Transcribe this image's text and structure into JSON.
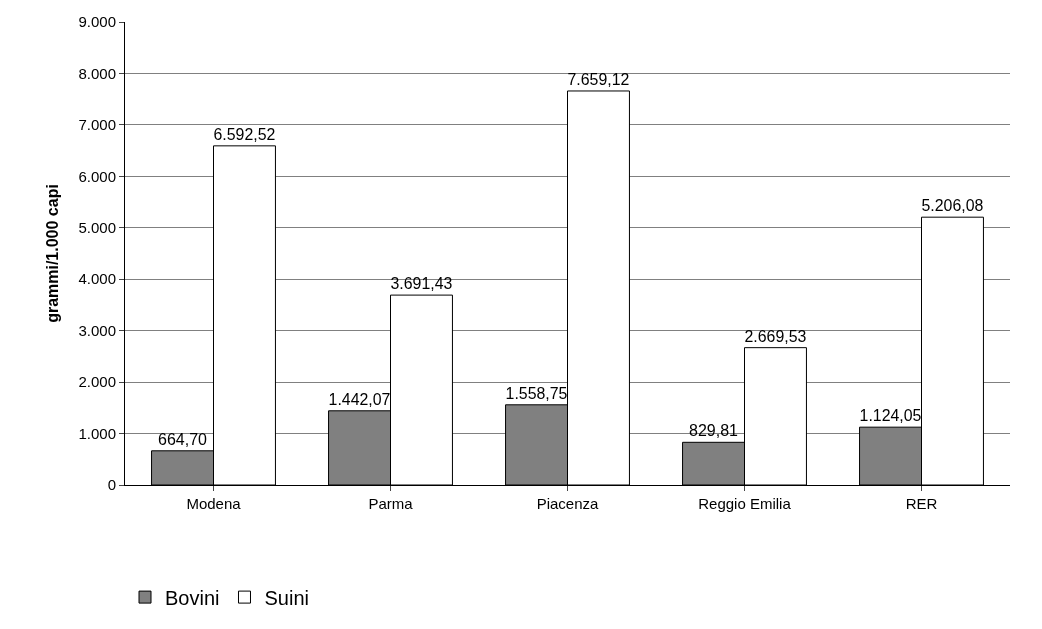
{
  "chart_data": {
    "type": "bar",
    "ylabel": "grammi/1.000 capi",
    "categories": [
      "Modena",
      "Parma",
      "Piacenza",
      "Reggio Emilia",
      "RER"
    ],
    "series": [
      {
        "name": "Bovini",
        "color": "#808080",
        "values": [
          664.7,
          1442.07,
          1558.75,
          829.81,
          1124.05
        ],
        "value_labels": [
          "664,70",
          "1.442,07",
          "1.558,75",
          "829,81",
          "1.124,05"
        ]
      },
      {
        "name": "Suini",
        "color": "#ffffff",
        "values": [
          6592.52,
          3691.43,
          7659.12,
          2669.53,
          5206.08
        ],
        "value_labels": [
          "6.592,52",
          "3.691,43",
          "7.659,12",
          "2.669,53",
          "5.206,08"
        ]
      }
    ],
    "ylim": [
      0,
      9000
    ],
    "yticks": [
      {
        "value": 0,
        "label": "0"
      },
      {
        "value": 1000,
        "label": "1.000"
      },
      {
        "value": 2000,
        "label": "2.000"
      },
      {
        "value": 3000,
        "label": "3.000"
      },
      {
        "value": 4000,
        "label": "4.000"
      },
      {
        "value": 5000,
        "label": "5.000"
      },
      {
        "value": 6000,
        "label": "6.000"
      },
      {
        "value": 7000,
        "label": "7.000"
      },
      {
        "value": 8000,
        "label": "8.000"
      },
      {
        "value": 9000,
        "label": "9.000"
      }
    ],
    "grid": "y",
    "legend": "bottom left"
  }
}
